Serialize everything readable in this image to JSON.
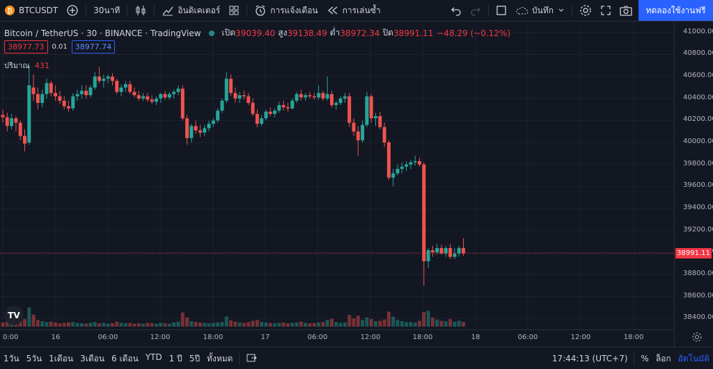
{
  "topbar": {
    "symbol": "BTCUSDT",
    "interval": "30นาที",
    "indicators": "อินดิเคเตอร์",
    "alert": "การแจ้งเตือน",
    "replay": "การเล่นซ้ำ",
    "save": "บันทึก",
    "trial": "ทดลองใช้งานฟรี"
  },
  "legend": {
    "title": "Bitcoin / TetherUS · 30 · BINANCE · TradingView",
    "open_label": "เปิด",
    "open": "39039.40",
    "high_label": "สูง",
    "high": "39138.49",
    "low_label": "ต่ำ",
    "low": "38972.34",
    "close_label": "ปิด",
    "close": "38991.11",
    "change": "−48.29 (−0.12%)"
  },
  "pricebox": {
    "bid": "38977.73",
    "spread": "0.01",
    "ask": "38977.74"
  },
  "volume": {
    "label": "ปริมาณ",
    "value": "431"
  },
  "price_axis": {
    "ticks": [
      "41000.00",
      "40800.00",
      "40600.00",
      "40400.00",
      "40200.00",
      "40000.00",
      "39800.00",
      "39600.00",
      "39400.00",
      "39200.00",
      "39000.00",
      "38800.00",
      "38600.00",
      "38400.00"
    ],
    "last_price": "38991.11"
  },
  "time_axis": {
    "ticks": [
      "0:00",
      "16",
      "06:00",
      "12:00",
      "18:00",
      "17",
      "06:00",
      "12:00",
      "18:00",
      "18",
      "06:00",
      "12:00",
      "18:00"
    ]
  },
  "bottombar": {
    "ranges": [
      "1วัน",
      "5วัน",
      "1เดือน",
      "3เดือน",
      "6 เดือน",
      "YTD",
      "1 ปี",
      "5ปี",
      "ทั้งหมด"
    ],
    "time": "17:44:13 (UTC+7)",
    "percent": "%",
    "log": "ล็อก",
    "auto": "อัตโนมัติ"
  },
  "colors": {
    "up": "#26a69a",
    "down": "#ef5350",
    "accent": "#2962ff",
    "bg": "#131722"
  },
  "chart_data": {
    "type": "candlestick",
    "price_range": [
      38300,
      41100
    ],
    "candles": [
      [
        40250,
        40300,
        40180,
        40230
      ],
      [
        40230,
        40270,
        40100,
        40150
      ],
      [
        40150,
        40260,
        40120,
        40220
      ],
      [
        40220,
        40240,
        40100,
        40180
      ],
      [
        40180,
        40200,
        40020,
        40060
      ],
      [
        40060,
        40120,
        39920,
        39990
      ],
      [
        40000,
        40700,
        39980,
        40520
      ],
      [
        40500,
        40620,
        40380,
        40440
      ],
      [
        40440,
        40500,
        40300,
        40360
      ],
      [
        40360,
        40480,
        40320,
        40440
      ],
      [
        40440,
        40580,
        40400,
        40540
      ],
      [
        40540,
        40560,
        40420,
        40450
      ],
      [
        40450,
        40520,
        40380,
        40420
      ],
      [
        40420,
        40470,
        40350,
        40380
      ],
      [
        40380,
        40420,
        40300,
        40330
      ],
      [
        40330,
        40380,
        40280,
        40310
      ],
      [
        40310,
        40450,
        40290,
        40420
      ],
      [
        40420,
        40480,
        40380,
        40440
      ],
      [
        40440,
        40520,
        40400,
        40470
      ],
      [
        40470,
        40520,
        40400,
        40430
      ],
      [
        40430,
        40520,
        40410,
        40500
      ],
      [
        40500,
        40640,
        40480,
        40600
      ],
      [
        40600,
        40690,
        40540,
        40560
      ],
      [
        40560,
        40620,
        40500,
        40580
      ],
      [
        40580,
        40620,
        40540,
        40600
      ],
      [
        40600,
        40630,
        40520,
        40560
      ],
      [
        40560,
        40580,
        40440,
        40460
      ],
      [
        40460,
        40530,
        40420,
        40500
      ],
      [
        40500,
        40560,
        40460,
        40530
      ],
      [
        40530,
        40560,
        40440,
        40460
      ],
      [
        40460,
        40500,
        40410,
        40430
      ],
      [
        40430,
        40470,
        40380,
        40400
      ],
      [
        40400,
        40450,
        40380,
        40420
      ],
      [
        40420,
        40450,
        40370,
        40390
      ],
      [
        40390,
        40430,
        40350,
        40370
      ],
      [
        40370,
        40420,
        40340,
        40400
      ],
      [
        40400,
        40450,
        40360,
        40440
      ],
      [
        40440,
        40470,
        40390,
        40410
      ],
      [
        40410,
        40460,
        40390,
        40440
      ],
      [
        40440,
        40480,
        40400,
        40460
      ],
      [
        40460,
        40520,
        40430,
        40490
      ],
      [
        40490,
        40520,
        40200,
        40220
      ],
      [
        40220,
        40250,
        39980,
        40040
      ],
      [
        40040,
        40170,
        40000,
        40150
      ],
      [
        40150,
        40200,
        40080,
        40110
      ],
      [
        40110,
        40160,
        40050,
        40090
      ],
      [
        40090,
        40160,
        40060,
        40130
      ],
      [
        40130,
        40200,
        40100,
        40170
      ],
      [
        40170,
        40220,
        40140,
        40200
      ],
      [
        40200,
        40310,
        40180,
        40290
      ],
      [
        40290,
        40400,
        40270,
        40380
      ],
      [
        40380,
        40640,
        40360,
        40580
      ],
      [
        40580,
        40620,
        40420,
        40450
      ],
      [
        40450,
        40500,
        40360,
        40400
      ],
      [
        40400,
        40460,
        40360,
        40430
      ],
      [
        40430,
        40470,
        40390,
        40420
      ],
      [
        40420,
        40450,
        40340,
        40360
      ],
      [
        40360,
        40400,
        40240,
        40260
      ],
      [
        40260,
        40300,
        40140,
        40170
      ],
      [
        40170,
        40250,
        40150,
        40220
      ],
      [
        40220,
        40300,
        40200,
        40280
      ],
      [
        40280,
        40320,
        40240,
        40260
      ],
      [
        40260,
        40310,
        40230,
        40290
      ],
      [
        40290,
        40370,
        40270,
        40340
      ],
      [
        40340,
        40380,
        40290,
        40320
      ],
      [
        40320,
        40360,
        40280,
        40310
      ],
      [
        40310,
        40400,
        40300,
        40380
      ],
      [
        40380,
        40460,
        40360,
        40440
      ],
      [
        40440,
        40480,
        40380,
        40410
      ],
      [
        40410,
        40450,
        40380,
        40430
      ],
      [
        40430,
        40460,
        40400,
        40420
      ],
      [
        40420,
        40450,
        40390,
        40410
      ],
      [
        40410,
        40520,
        40390,
        40450
      ],
      [
        40450,
        40470,
        40380,
        40400
      ],
      [
        40400,
        40600,
        40380,
        40440
      ],
      [
        40440,
        40470,
        40320,
        40340
      ],
      [
        40340,
        40380,
        40300,
        40360
      ],
      [
        40360,
        40420,
        40340,
        40400
      ],
      [
        40400,
        40450,
        40360,
        40420
      ],
      [
        40420,
        40450,
        40140,
        40180
      ],
      [
        40180,
        40220,
        40060,
        40100
      ],
      [
        40100,
        40150,
        39880,
        40020
      ],
      [
        40020,
        40200,
        40000,
        40160
      ],
      [
        40160,
        40460,
        40140,
        40420
      ],
      [
        40420,
        40440,
        40180,
        40220
      ],
      [
        40220,
        40270,
        40150,
        40240
      ],
      [
        40240,
        40280,
        40120,
        40140
      ],
      [
        40140,
        40180,
        39960,
        40000
      ],
      [
        40000,
        40020,
        39660,
        39680
      ],
      [
        39680,
        39760,
        39600,
        39720
      ],
      [
        39720,
        39800,
        39700,
        39760
      ],
      [
        39760,
        39820,
        39720,
        39780
      ],
      [
        39780,
        39830,
        39740,
        39800
      ],
      [
        39800,
        39840,
        39760,
        39820
      ],
      [
        39820,
        39880,
        39790,
        39830
      ],
      [
        39830,
        39860,
        39780,
        39800
      ],
      [
        39800,
        39820,
        38700,
        38920
      ],
      [
        38920,
        39040,
        38860,
        39020
      ],
      [
        39020,
        39060,
        38960,
        39000
      ],
      [
        39000,
        39080,
        38980,
        39040
      ],
      [
        39040,
        39070,
        38980,
        38990
      ],
      [
        38990,
        39060,
        38960,
        39040
      ],
      [
        39040,
        39080,
        38940,
        38960
      ],
      [
        38960,
        39040,
        38940,
        38990
      ],
      [
        38990,
        39060,
        38960,
        39040
      ],
      [
        39040,
        39130,
        38970,
        38991
      ]
    ],
    "volumes": [
      1,
      1.2,
      0.9,
      1.4,
      2.5,
      1.8,
      4.6,
      2.9,
      1.6,
      1.3,
      1.1,
      1.2,
      1,
      0.8,
      0.9,
      1,
      1.1,
      0.9,
      0.8,
      0.7,
      0.9,
      1.1,
      0.8,
      0.9,
      0.7,
      0.8,
      1.2,
      0.9,
      0.8,
      0.9,
      0.7,
      0.8,
      0.7,
      0.9,
      0.8,
      0.7,
      0.9,
      0.8,
      0.7,
      1,
      1.2,
      3.4,
      2.2,
      1.3,
      1.1,
      1,
      0.9,
      0.8,
      0.9,
      1,
      1.1,
      2.4,
      1.5,
      1.2,
      1,
      0.9,
      1.1,
      1.4,
      1.6,
      1.1,
      1,
      0.9,
      0.8,
      0.9,
      1,
      0.8,
      0.9,
      1,
      1.2,
      0.9,
      0.8,
      0.9,
      1,
      1.1,
      1.6,
      1.9,
      1.1,
      0.9,
      1,
      2.8,
      2,
      2.6,
      1.6,
      2.2,
      1.8,
      1.3,
      1.4,
      1.7,
      3.6,
      2.4,
      1.6,
      1.3,
      1.1,
      1.1,
      1,
      1.4,
      3.5,
      3.8,
      2.2,
      1.7,
      1.4,
      1.3,
      1.8,
      1.2,
      1.4,
      1.1
    ]
  }
}
